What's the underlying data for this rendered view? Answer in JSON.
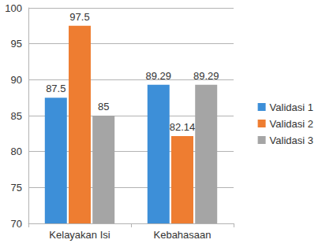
{
  "chart_data": {
    "type": "bar",
    "categories": [
      "Kelayakan Isi",
      "Kebahasaan"
    ],
    "series": [
      {
        "name": "Validasi 1",
        "color": "#3d8fd8",
        "values": [
          87.5,
          89.29
        ]
      },
      {
        "name": "Validasi 2",
        "color": "#ee7d31",
        "values": [
          97.5,
          82.14
        ]
      },
      {
        "name": "Validasi 3",
        "color": "#a5a5a5",
        "values": [
          85,
          89.29
        ]
      }
    ],
    "ylim": [
      70,
      100
    ],
    "yticks": [
      70,
      75,
      80,
      85,
      90,
      95,
      100
    ],
    "grid": true,
    "legend": "right",
    "data_labels": true
  }
}
